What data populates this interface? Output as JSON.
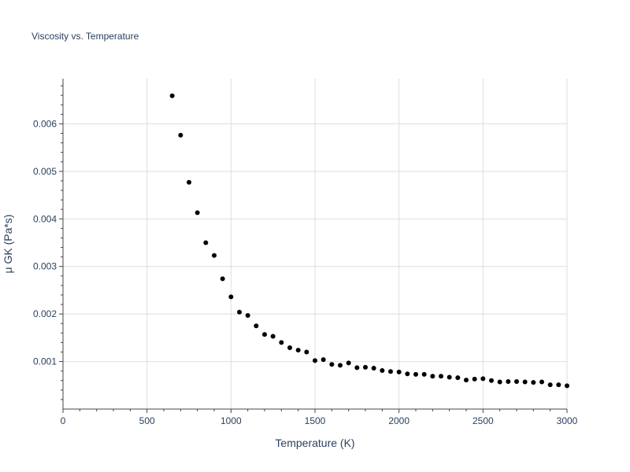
{
  "chart_data": {
    "type": "scatter",
    "title": "Viscosity vs. Temperature",
    "xlabel": "Temperature (K)",
    "ylabel": "μ GK (Pa*s)",
    "xlim": [
      0,
      3000
    ],
    "ylim": [
      0.0,
      0.00695
    ],
    "xticks": [
      0,
      500,
      1000,
      1500,
      2000,
      2500,
      3000
    ],
    "xtick_labels": [
      "0",
      "500",
      "1000",
      "1500",
      "2000",
      "2500",
      "3000"
    ],
    "yticks": [
      0.001,
      0.002,
      0.003,
      0.004,
      0.005,
      0.006
    ],
    "ytick_labels": [
      "0.001",
      "0.002",
      "0.003",
      "0.004",
      "0.005",
      "0.006"
    ],
    "grid": true,
    "marker_color": "#000000",
    "x": [
      650,
      700,
      750,
      800,
      850,
      900,
      950,
      1000,
      1050,
      1100,
      1150,
      1200,
      1250,
      1300,
      1350,
      1400,
      1450,
      1500,
      1550,
      1600,
      1650,
      1700,
      1750,
      1800,
      1850,
      1900,
      1950,
      2000,
      2050,
      2100,
      2150,
      2200,
      2250,
      2300,
      2350,
      2400,
      2450,
      2500,
      2550,
      2600,
      2650,
      2700,
      2750,
      2800,
      2850,
      2900,
      2950,
      3000
    ],
    "y": [
      0.00659,
      0.00576,
      0.00477,
      0.00413,
      0.0035,
      0.00323,
      0.00274,
      0.00236,
      0.00204,
      0.00197,
      0.00175,
      0.00157,
      0.00153,
      0.0014,
      0.00129,
      0.00124,
      0.0012,
      0.00102,
      0.00104,
      0.00094,
      0.00092,
      0.00097,
      0.00087,
      0.00088,
      0.00086,
      0.00081,
      0.00079,
      0.00078,
      0.00074,
      0.00073,
      0.00073,
      0.00069,
      0.00069,
      0.00067,
      0.00066,
      0.00061,
      0.00063,
      0.00064,
      0.0006,
      0.00057,
      0.00058,
      0.00058,
      0.00057,
      0.00056,
      0.00057,
      0.00051,
      0.00051,
      0.00049
    ]
  }
}
